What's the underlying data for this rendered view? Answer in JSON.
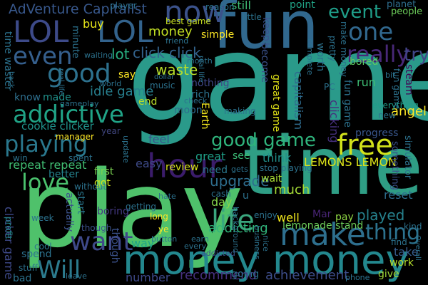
{
  "word_cloud": {
    "background": "#000000",
    "orientation_note": "mixed horizontal and vertical words",
    "words": [
      {
        "text": "game",
        "color": "#2a9a8a"
      },
      {
        "text": "play",
        "color": "#4fc16b"
      },
      {
        "text": "time",
        "color": "#2f9e85"
      },
      {
        "text": "fun",
        "color": "#31688e"
      },
      {
        "text": "money money",
        "color": "#23888e"
      },
      {
        "text": "hour",
        "color": "#3b1c6b"
      },
      {
        "text": "make",
        "color": "#2e6f8e"
      },
      {
        "text": "life",
        "color": "#3aa57d"
      },
      {
        "text": "now",
        "color": "#3b528b"
      },
      {
        "text": "one",
        "color": "#31688e"
      },
      {
        "text": "even",
        "color": "#355f8d"
      },
      {
        "text": "good",
        "color": "#2d718e"
      },
      {
        "text": "really",
        "color": "#482878"
      },
      {
        "text": "LOL",
        "color": "#3d4a89"
      },
      {
        "text": "LOL",
        "color": "#33638d"
      },
      {
        "text": "addictive",
        "color": "#20a386"
      },
      {
        "text": "playing",
        "color": "#2a788e"
      },
      {
        "text": "want",
        "color": "#3e4989"
      },
      {
        "text": "Will",
        "color": "#2c7b8e"
      },
      {
        "text": "love",
        "color": "#4ac16d"
      },
      {
        "text": "free",
        "color": "#d2e21b"
      },
      {
        "text": "event",
        "color": "#1f9e89"
      },
      {
        "text": "thing",
        "color": "#2c728e"
      },
      {
        "text": "good game",
        "color": "#2fb47c"
      },
      {
        "text": "AdVenture Capitalist",
        "color": "#38588c"
      },
      {
        "text": "money",
        "color": "#c2df23"
      },
      {
        "text": "click click",
        "color": "#33638d"
      },
      {
        "text": "waste",
        "color": "#b8de29"
      },
      {
        "text": "upgrade",
        "color": "#2e6e8e"
      },
      {
        "text": "LEMONS LEMON",
        "color": "#dde318"
      },
      {
        "text": "repeat repeat",
        "color": "#40bd72"
      },
      {
        "text": "cookie clicker",
        "color": "#20938c"
      },
      {
        "text": "played",
        "color": "#26828e"
      },
      {
        "text": "much",
        "color": "#a5db36"
      },
      {
        "text": "addicting",
        "color": "#31b57b"
      },
      {
        "text": "lemonade stand",
        "color": "#6ccd5a"
      },
      {
        "text": "achievement",
        "color": "#3d4d8a"
      },
      {
        "text": "recommend",
        "color": "#46307e"
      },
      {
        "text": "idle game",
        "color": "#277f8e"
      },
      {
        "text": "still",
        "color": "#3fbc73"
      },
      {
        "text": "buy",
        "color": "#e5e419"
      },
      {
        "text": "point",
        "color": "#20a486"
      },
      {
        "text": "planet",
        "color": "#2e6e8e"
      },
      {
        "text": "people",
        "color": "#6ccd5a"
      },
      {
        "text": "try",
        "color": "#404688"
      },
      {
        "text": "lot",
        "color": "#28ae80"
      },
      {
        "text": "bored",
        "color": "#5ec962"
      },
      {
        "text": "run",
        "color": "#3dbc74"
      },
      {
        "text": "angel",
        "color": "#fde725"
      },
      {
        "text": "progress",
        "color": "#39568c"
      },
      {
        "text": "reset",
        "color": "#2e6e8e"
      },
      {
        "text": "take",
        "color": "#365d8d"
      },
      {
        "text": "work",
        "color": "#b5de2b"
      },
      {
        "text": "give",
        "color": "#a0da39"
      },
      {
        "text": "well",
        "color": "#efe51c"
      },
      {
        "text": "pay",
        "color": "#8fd744"
      },
      {
        "text": "Mar",
        "color": "#482475"
      },
      {
        "text": "way",
        "color": "#20a486"
      },
      {
        "text": "day",
        "color": "#84d44b"
      },
      {
        "text": "think",
        "color": "#21918c"
      },
      {
        "text": "great",
        "color": "#1fa088"
      },
      {
        "text": "feel",
        "color": "#39568c"
      },
      {
        "text": "easy",
        "color": "#3e4a89"
      },
      {
        "text": "review",
        "color": "#d8e219"
      },
      {
        "text": "first",
        "color": "#7ad151"
      },
      {
        "text": "got",
        "color": "#d0e11c"
      },
      {
        "text": "start",
        "color": "#2a788e"
      },
      {
        "text": "boring",
        "color": "#443983"
      },
      {
        "text": "better",
        "color": "#25838e"
      },
      {
        "text": "see",
        "color": "#3bbb75"
      },
      {
        "text": "wait",
        "color": "#a8db34"
      },
      {
        "text": "simple",
        "color": "#fde725"
      },
      {
        "text": "rich",
        "color": "#2c728e"
      },
      {
        "text": "nothing",
        "color": "#3f4788"
      },
      {
        "text": "moon",
        "color": "#2f6c8e"
      },
      {
        "text": "end",
        "color": "#b8de29"
      },
      {
        "text": "say",
        "color": "#fde725"
      },
      {
        "text": "made",
        "color": "#20928c"
      },
      {
        "text": "know",
        "color": "#2e6f8e"
      },
      {
        "text": "year",
        "color": "#40467f"
      },
      {
        "text": "need",
        "color": "#2a788e"
      },
      {
        "text": "Earth",
        "color": "#f1e51d"
      },
      {
        "text": "great game",
        "color": "#e2e418"
      },
      {
        "text": "capitalism",
        "color": "#2f6b8e"
      },
      {
        "text": "fun game",
        "color": "#2c728e"
      },
      {
        "text": "clicking",
        "color": "#46307e"
      },
      {
        "text": "clicker game",
        "color": "#3e4989"
      },
      {
        "text": "time waster",
        "color": "#2c728e"
      },
      {
        "text": "profit",
        "color": "#238a8d"
      },
      {
        "text": "spend",
        "color": "#2c728e"
      },
      {
        "text": "number",
        "color": "#3e4989"
      },
      {
        "text": "going",
        "color": "#2c728e"
      },
      {
        "text": "actually",
        "color": "#3b528b"
      },
      {
        "text": "though",
        "color": "#3b528b"
      },
      {
        "text": "long",
        "color": "#fde725"
      },
      {
        "text": "ye",
        "color": "#fde725"
      },
      {
        "text": "best game",
        "color": "#c8e020"
      },
      {
        "text": "minute",
        "color": "#2c728e"
      },
      {
        "text": "keep",
        "color": "#3b528b"
      },
      {
        "text": "worth",
        "color": "#2c728e"
      },
      {
        "text": "become",
        "color": "#3b528b"
      },
      {
        "text": "something",
        "color": "#3b528b"
      },
      {
        "text": "steam",
        "color": "#440154"
      },
      {
        "text": "simulator",
        "color": "#2c728e"
      },
      {
        "text": "everything",
        "color": "#1f9e89"
      },
      {
        "text": "making",
        "color": "#2c728e"
      },
      {
        "text": "music",
        "color": "#2c728e"
      },
      {
        "text": "background",
        "color": "#2c728e"
      },
      {
        "text": "business",
        "color": "#2c728e"
      },
      {
        "text": "enjoy",
        "color": "#2c728e"
      },
      {
        "text": "every",
        "color": "#2c728e"
      },
      {
        "text": "earn",
        "color": "#2c728e"
      },
      {
        "text": "addicted",
        "color": "#3b528b"
      },
      {
        "text": "cash",
        "color": "#2c728e"
      },
      {
        "text": "stop playing",
        "color": "#2c728e"
      },
      {
        "text": "hate",
        "color": "#2c728e"
      },
      {
        "text": "phone",
        "color": "#2c728e"
      },
      {
        "text": "kind",
        "color": "#2c728e"
      },
      {
        "text": "find",
        "color": "#2c728e"
      },
      {
        "text": "new",
        "color": "#2c728e"
      },
      {
        "text": "bad",
        "color": "#2c728e"
      },
      {
        "text": "week",
        "color": "#2c728e"
      },
      {
        "text": "cool",
        "color": "#2c728e"
      },
      {
        "text": "getting",
        "color": "#2c728e"
      },
      {
        "text": "open",
        "color": "#2c728e"
      },
      {
        "text": "check",
        "color": "#fde725"
      },
      {
        "text": "manager",
        "color": "#2c728e"
      },
      {
        "text": "update",
        "color": "#2c728e"
      },
      {
        "text": "without",
        "color": "#2c728e"
      },
      {
        "text": "spent",
        "color": "#2c728e"
      },
      {
        "text": "win",
        "color": "#2c728e"
      },
      {
        "text": "stuff",
        "color": "#2c728e"
      },
      {
        "text": "reason",
        "color": "#2c728e"
      },
      {
        "text": "little",
        "color": "#2c728e"
      },
      {
        "text": "player",
        "color": "#2c728e"
      },
      {
        "text": "friend",
        "color": "#2c728e"
      },
      {
        "text": "month",
        "color": "#2c728e"
      },
      {
        "text": "waiting",
        "color": "#2c728e"
      },
      {
        "text": "world",
        "color": "#2c728e"
      },
      {
        "text": "gameplay",
        "color": "#2c728e"
      },
      {
        "text": "pretty",
        "color": "#2c728e"
      },
      {
        "text": "complete",
        "color": "#2c728e"
      },
      {
        "text": "u",
        "color": "#2c728e"
      },
      {
        "text": "PC",
        "color": "#2c728e"
      },
      {
        "text": "bit",
        "color": "#2c728e"
      },
      {
        "text": "fun game",
        "color": "#2c728e"
      },
      {
        "text": "Overall",
        "color": "#2c728e"
      },
      {
        "text": "leave",
        "color": "#2c728e"
      },
      {
        "text": "back",
        "color": "#2c728e"
      },
      {
        "text": "button",
        "color": "#2c728e"
      },
      {
        "text": "real life",
        "color": "#2c728e"
      },
      {
        "text": "nice",
        "color": "#2c728e"
      },
      {
        "text": "gets",
        "color": "#2c728e"
      },
      {
        "text": "dollar",
        "color": "#2c728e"
      },
      {
        "text": "make money",
        "color": "#2c728e"
      }
    ]
  }
}
